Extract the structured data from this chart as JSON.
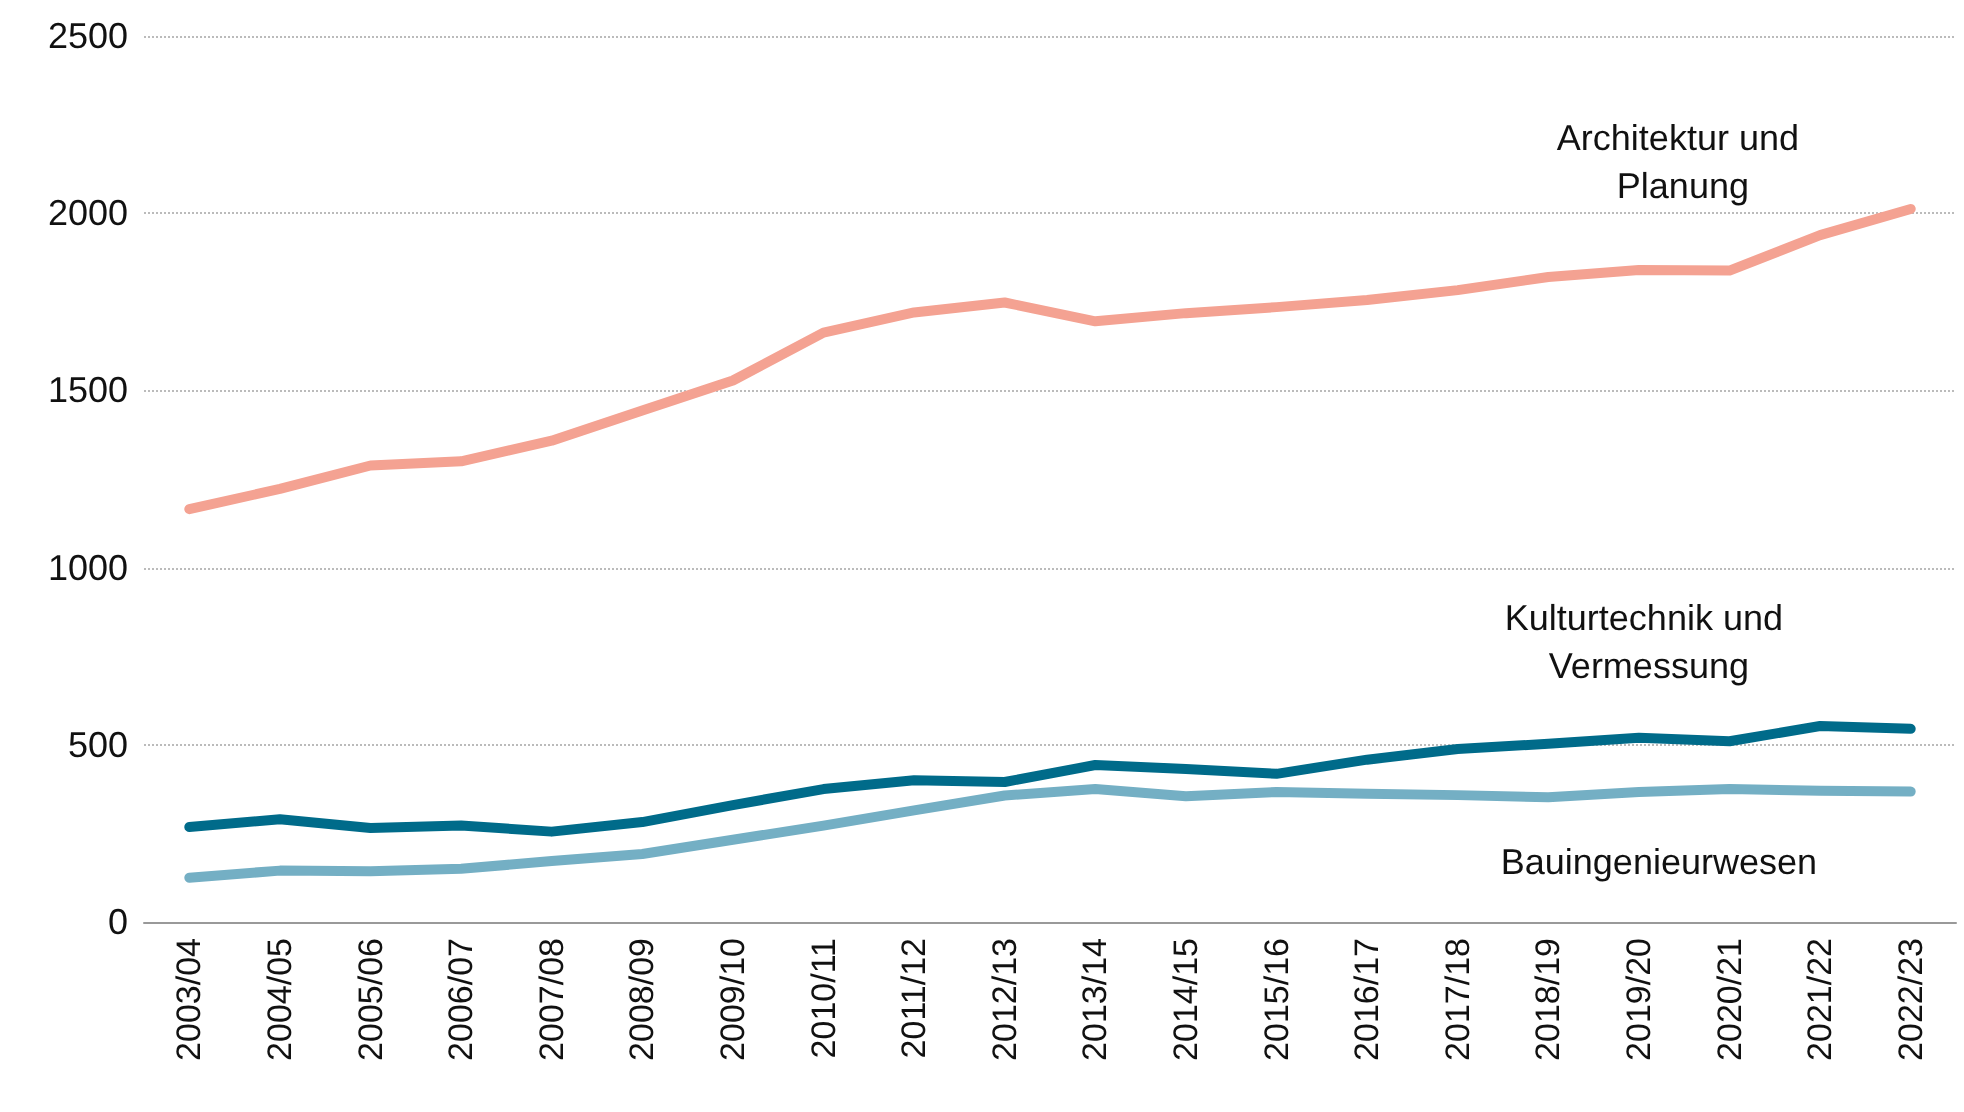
{
  "chart_data": {
    "type": "line",
    "categories": [
      "2003/04",
      "2004/05",
      "2005/06",
      "2006/07",
      "2007/08",
      "2008/09",
      "2009/10",
      "2010/11",
      "2011/12",
      "2012/13",
      "2013/14",
      "2014/15",
      "2015/16",
      "2016/17",
      "2017/18",
      "2018/19",
      "2019/20",
      "2020/21",
      "2021/22",
      "2022/23"
    ],
    "series": [
      {
        "name": "Architektur und Planung",
        "color": "#f4a292",
        "values": [
          1165,
          1222,
          1288,
          1300,
          1358,
          1443,
          1528,
          1663,
          1720,
          1748,
          1695,
          1718,
          1735,
          1755,
          1783,
          1820,
          1840,
          1838,
          1938,
          2012
        ]
      },
      {
        "name": "Kulturtechnik und Vermessung",
        "color": "#006b8a",
        "values": [
          268,
          290,
          265,
          272,
          255,
          282,
          330,
          375,
          400,
          395,
          443,
          432,
          418,
          458,
          488,
          503,
          520,
          510,
          553,
          545
        ]
      },
      {
        "name": "Bauingenieurwesen",
        "color": "#74afc4",
        "values": [
          125,
          145,
          143,
          150,
          172,
          192,
          232,
          272,
          315,
          357,
          375,
          355,
          367,
          362,
          358,
          352,
          367,
          375,
          370,
          368
        ]
      }
    ],
    "ylim": [
      0,
      2500
    ],
    "yticks": [
      0,
      500,
      1000,
      1500,
      2000,
      2500
    ],
    "grid": "y",
    "legend": false,
    "marker": "none",
    "line_style": "solid"
  }
}
